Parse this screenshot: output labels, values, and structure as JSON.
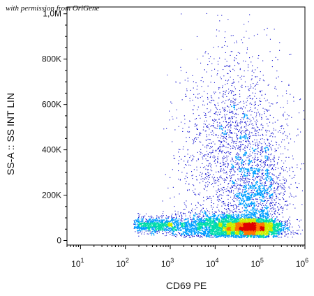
{
  "watermark": "with permission from OriGene",
  "chart_data": {
    "type": "scatter",
    "title": "",
    "xlabel": "CD69 PE",
    "ylabel": "SS-A :: SS INT LIN",
    "x_scale": "log",
    "xlim": [
      5,
      1000000
    ],
    "ylim": [
      -20000,
      1030000
    ],
    "x_ticks": [
      {
        "value": 10,
        "base": "10",
        "exp": "1"
      },
      {
        "value": 100,
        "base": "10",
        "exp": "2"
      },
      {
        "value": 1000,
        "base": "10",
        "exp": "3"
      },
      {
        "value": 10000,
        "base": "10",
        "exp": "4"
      },
      {
        "value": 100000,
        "base": "10",
        "exp": "5"
      },
      {
        "value": 1000000,
        "base": "10",
        "exp": "6"
      }
    ],
    "y_ticks": [
      {
        "value": 0,
        "label": "0"
      },
      {
        "value": 200000,
        "label": "200K"
      },
      {
        "value": 400000,
        "label": "400K"
      },
      {
        "value": 600000,
        "label": "600K"
      },
      {
        "value": 800000,
        "label": "800K"
      },
      {
        "value": 1000000,
        "label": "1,0M"
      }
    ],
    "grid": false,
    "legend": "none",
    "density_colors": [
      "#0000cc",
      "#00a0ff",
      "#00ddaa",
      "#ccee00",
      "#ff7700",
      "#e00000"
    ],
    "populations": [
      {
        "x_center": 60000,
        "y_center": 60000,
        "x_spread_log10": 0.35,
        "y_spread": 22000,
        "count": 2600
      },
      {
        "x_center": 400,
        "y_center": 70000,
        "x_spread_log10": 0.45,
        "y_spread": 18000,
        "count": 900
      },
      {
        "x_center": 8000,
        "y_center": 70000,
        "x_spread_log10": 0.5,
        "y_spread": 30000,
        "count": 1200
      },
      {
        "x_center": 30000,
        "y_center": 380000,
        "x_spread_log10": 0.6,
        "y_spread": 220000,
        "count": 2400
      },
      {
        "x_center": 100000,
        "y_center": 200000,
        "x_spread_log10": 0.3,
        "y_spread": 90000,
        "count": 700
      }
    ]
  }
}
